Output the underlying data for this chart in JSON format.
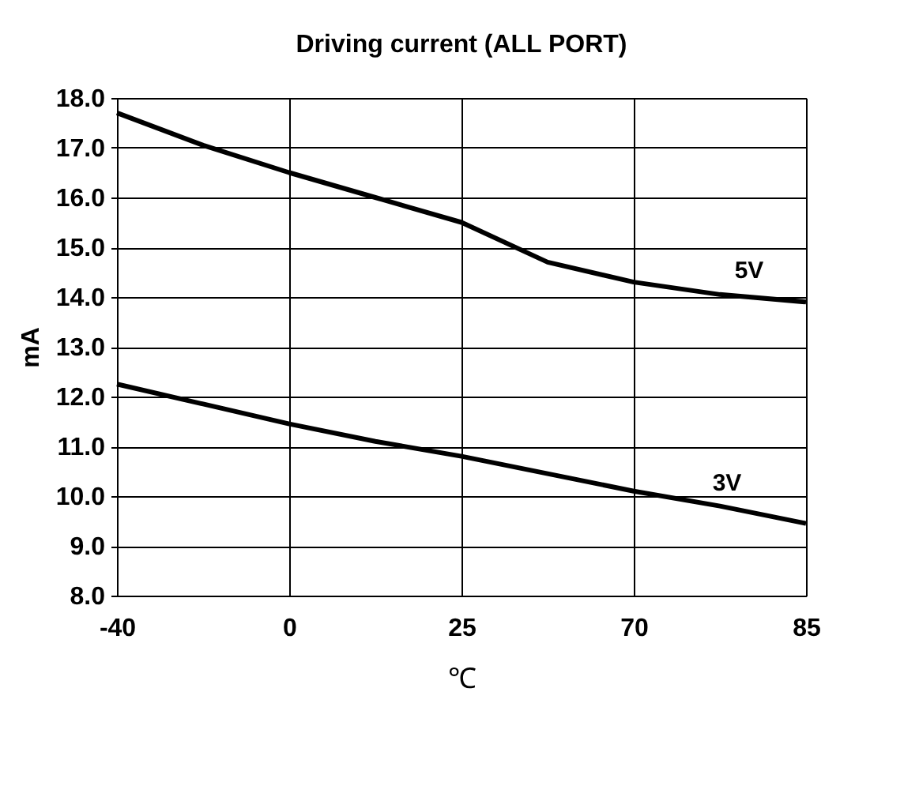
{
  "chart_data": {
    "type": "line",
    "title": "Driving current (ALL PORT)",
    "xlabel": "℃",
    "ylabel": "mA",
    "categories": [
      "-40",
      null,
      "0",
      null,
      "25",
      null,
      "70",
      null,
      "85"
    ],
    "series": [
      {
        "name": "5V",
        "color": "#000000",
        "values": [
          17.7,
          17.05,
          16.5,
          16.0,
          15.5,
          14.7,
          14.3,
          14.05,
          13.9
        ]
      },
      {
        "name": "3V",
        "color": "#000000",
        "values": [
          12.25,
          11.85,
          11.45,
          11.1,
          10.8,
          10.45,
          10.1,
          9.8,
          9.45
        ]
      }
    ],
    "ylim": [
      8.0,
      18.0
    ],
    "yticks": [
      {
        "value": 8,
        "label": "8.0"
      },
      {
        "value": 9,
        "label": "9.0"
      },
      {
        "value": 10,
        "label": "10.0"
      },
      {
        "value": 11,
        "label": "11.0"
      },
      {
        "value": 12,
        "label": "12.0"
      },
      {
        "value": 13,
        "label": "13.0"
      },
      {
        "value": 14,
        "label": "14.0"
      },
      {
        "value": 15,
        "label": "15.0"
      },
      {
        "value": 16,
        "label": "16.0"
      },
      {
        "value": 17,
        "label": "17.0"
      },
      {
        "value": 18,
        "label": "18.0"
      }
    ],
    "grid": true,
    "marker": "none",
    "line_style": "solid"
  }
}
